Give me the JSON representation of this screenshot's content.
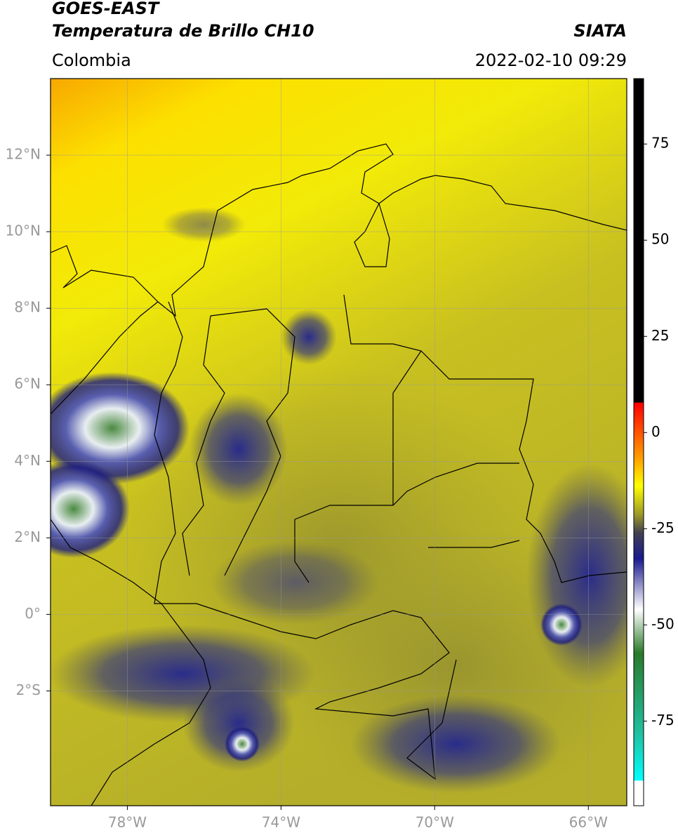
{
  "header": {
    "title": "GOES-EAST",
    "subtitle": "Temperatura de Brillo CH10",
    "source": "SIATA",
    "region": "Colombia",
    "datetime": "2022-02-10 09:29"
  },
  "map": {
    "xlim": [
      -80,
      -65
    ],
    "ylim": [
      -5,
      14
    ],
    "xticks": [
      {
        "value": -78,
        "label": "78°W"
      },
      {
        "value": -74,
        "label": "74°W"
      },
      {
        "value": -70,
        "label": "70°W"
      },
      {
        "value": -66,
        "label": "66°W"
      }
    ],
    "yticks": [
      {
        "value": 12,
        "label": "12°N"
      },
      {
        "value": 10,
        "label": "10°N"
      },
      {
        "value": 8,
        "label": "8°N"
      },
      {
        "value": 6,
        "label": "6°N"
      },
      {
        "value": 4,
        "label": "4°N"
      },
      {
        "value": 2,
        "label": "2°N"
      },
      {
        "value": 0,
        "label": "0°"
      },
      {
        "value": -2,
        "label": "2°S"
      }
    ],
    "grid": true
  },
  "colorbar": {
    "lim": [
      -97,
      92
    ],
    "ticks": [
      75,
      50,
      25,
      0,
      -25,
      -50,
      -75
    ]
  }
}
